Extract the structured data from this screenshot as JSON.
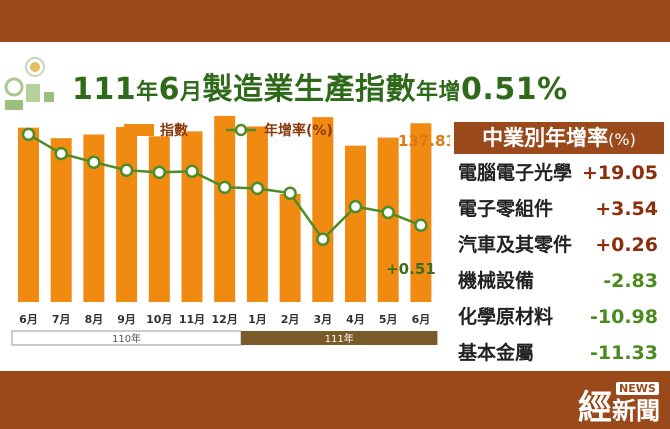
{
  "title": {
    "prefix": "111",
    "nian": "年",
    "month": "6",
    "yue": "月",
    "main": "製造業生產指數",
    "yoy": "年增",
    "value": "0.51%"
  },
  "legend": {
    "bar": "指數",
    "line": "年增率(%)"
  },
  "annotations": {
    "last_index": "137.81",
    "last_yoy": "+0.51"
  },
  "year_labels": [
    "110年",
    "111年"
  ],
  "side_panel": {
    "header": "中業別年增率",
    "header_unit": "(%)",
    "rows": [
      {
        "name": "電腦電子光學",
        "value": "+19.05"
      },
      {
        "name": "電子零組件",
        "value": "+3.54"
      },
      {
        "name": "汽車及其零件",
        "value": "+0.26"
      },
      {
        "name": "機械設備",
        "value": "-2.83"
      },
      {
        "name": "化學原材料",
        "value": "-10.98"
      },
      {
        "name": "基本金屬",
        "value": "-11.33"
      }
    ]
  },
  "logo": {
    "main": "經",
    "news": "NEWS",
    "sub": "新聞"
  },
  "colors": {
    "bar": "#f08a10",
    "line": "#4e8c2a",
    "brown": "#9a4a1a",
    "title": "#2f6a1a",
    "neg": "#4b8b1e",
    "pos": "#8b2e0c"
  },
  "chart_data": {
    "type": "bar",
    "categories": [
      "6月",
      "7月",
      "8月",
      "9月",
      "10月",
      "11月",
      "12月",
      "1月",
      "2月",
      "3月",
      "4月",
      "5月",
      "6月"
    ],
    "series": [
      {
        "name": "指數",
        "type": "bar",
        "values": [
          137.1,
          135.4,
          136.0,
          137.2,
          135.7,
          136.5,
          139.0,
          137.3,
          126.4,
          138.8,
          134.2,
          135.5,
          137.81
        ]
      },
      {
        "name": "年增率(%)",
        "type": "line",
        "values": [
          17.5,
          13.9,
          12.3,
          10.8,
          10.4,
          10.6,
          7.6,
          7.4,
          6.5,
          -2.1,
          4.0,
          2.9,
          0.51
        ]
      }
    ],
    "year_groups": [
      {
        "label": "110年",
        "span": [
          0,
          6
        ]
      },
      {
        "label": "111年",
        "span": [
          7,
          12
        ]
      }
    ]
  }
}
